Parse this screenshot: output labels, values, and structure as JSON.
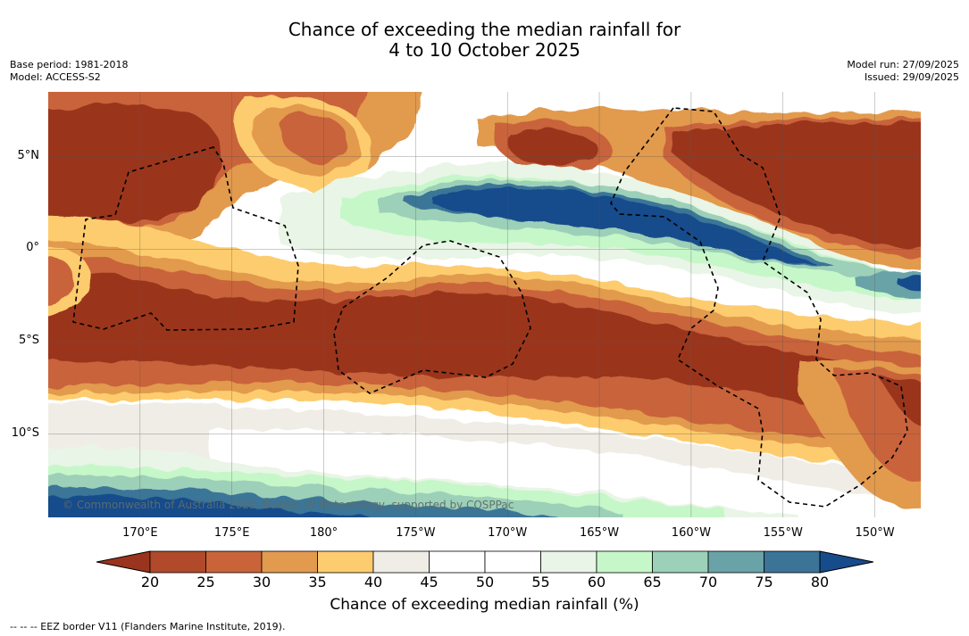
{
  "title": {
    "line1": "Chance of exceeding the median rainfall for",
    "line2": "4 to 10 October 2025"
  },
  "meta_left": {
    "base_period": "Base period: 1981-2018",
    "model": "Model: ACCESS-S2"
  },
  "meta_right": {
    "model_run": "Model run: 27/09/2025",
    "issued": "Issued: 29/09/2025"
  },
  "map": {
    "lon_range": [
      165,
      212.5
    ],
    "lat_range": [
      -14.5,
      8.5
    ],
    "lat_ticks": [
      {
        "lat": 5,
        "label": "5°N"
      },
      {
        "lat": 0,
        "label": "0°"
      },
      {
        "lat": -5,
        "label": "5°S"
      },
      {
        "lat": -10,
        "label": "10°S"
      }
    ],
    "lon_ticks": [
      {
        "lon": 170,
        "label": "170°E"
      },
      {
        "lon": 175,
        "label": "175°E"
      },
      {
        "lon": 180,
        "label": "180°"
      },
      {
        "lon": 185,
        "label": "175°W"
      },
      {
        "lon": 190,
        "label": "170°W"
      },
      {
        "lon": 195,
        "label": "165°W"
      },
      {
        "lon": 200,
        "label": "160°W"
      },
      {
        "lon": 205,
        "label": "155°W"
      },
      {
        "lon": 210,
        "label": "150°W"
      }
    ],
    "copyright": "© Commonwealth of Australia 2025, Bureau of Meteorology, supported by COSPPac"
  },
  "colorbar": {
    "ticks": [
      "20",
      "25",
      "30",
      "35",
      "40",
      "45",
      "50",
      "55",
      "60",
      "65",
      "70",
      "75",
      "80"
    ],
    "colors": [
      "#9a341e",
      "#b04a2b",
      "#c9643a",
      "#e29a4e",
      "#fdcc6e",
      "#f0ede7",
      "#ffffff",
      "#ffffff",
      "#e9f5e6",
      "#c6f7c9",
      "#9dd0b8",
      "#69a3a7",
      "#3b7497",
      "#174c8c"
    ],
    "label": "Chance of exceeding median rainfall (%)"
  },
  "legend_note": "-- -- -- EEZ border V11 (Flanders Marine Institute, 2019)."
}
